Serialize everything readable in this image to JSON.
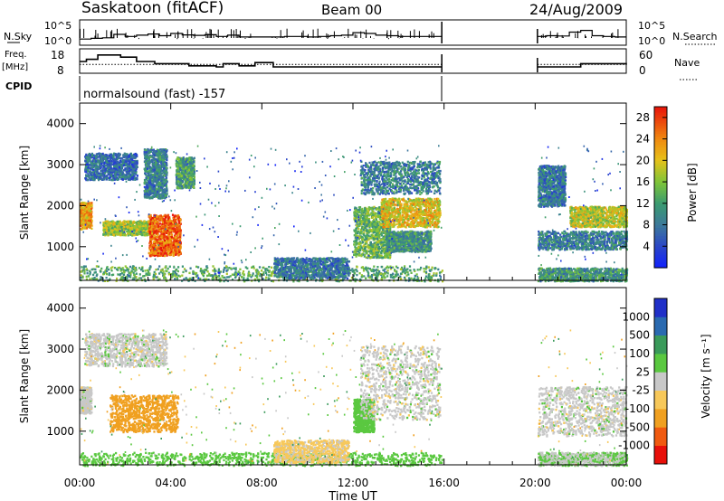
{
  "header": {
    "station": "Saskatoon (fitACF)",
    "beam": "Beam 00",
    "date": "24/Aug/2009"
  },
  "labels": {
    "nsky": "N.Sky",
    "nsearch": "N.Search",
    "freq": "Freq.",
    "mhz": "[MHz]",
    "nave": "Nave",
    "cpid": "CPID",
    "program": "normalsound (fast) -157",
    "slant_range": "Slant Range [km]",
    "power": "Power [dB]",
    "velocity": "Velocity [m s⁻¹]",
    "time_ut": "Time UT"
  },
  "chart_data": [
    {
      "type": "line",
      "panel": "noise",
      "series": [
        {
          "name": "N.Sky",
          "x": [
            0,
            0.5,
            1,
            1.5,
            2,
            2.5,
            3,
            3.5,
            4,
            4.5,
            5,
            5.5,
            6,
            6.5,
            7,
            7.5,
            8,
            8.5,
            9,
            9.5,
            10,
            10.5,
            11,
            11.5,
            12,
            12.5,
            13,
            13.5,
            14,
            14.5,
            15,
            15.5,
            15.9,
            20.1,
            20.5,
            21,
            21.5,
            22,
            22.5,
            23,
            23.5,
            24
          ],
          "values": [
            10,
            15,
            20,
            120,
            40,
            80,
            150,
            60,
            200,
            90,
            70,
            100,
            40,
            80,
            30,
            30,
            30,
            30,
            40,
            40,
            30,
            40,
            60,
            80,
            300,
            200,
            80,
            60,
            40,
            40,
            40,
            40,
            40,
            40,
            60,
            50,
            400,
            1000,
            60,
            40,
            30,
            30
          ]
        }
      ],
      "yticks": [
        "10^5",
        "10^0"
      ],
      "right_ticks": [
        "10^5",
        "10^0"
      ],
      "xlim": [
        "00:00",
        "24:00"
      ]
    },
    {
      "type": "line",
      "panel": "freq_nave",
      "series": [
        {
          "name": "Freq.",
          "x": [
            0,
            0.3,
            0.8,
            1.8,
            2.5,
            3.3,
            4.8,
            6,
            6.3,
            7,
            7.7,
            8.5,
            12,
            12.3,
            15.9,
            20.1,
            21.3,
            22,
            24
          ],
          "values": [
            13,
            14,
            16,
            15,
            13,
            12,
            11,
            10.5,
            12,
            11,
            12.5,
            10.5,
            10.5,
            10.5,
            10.5,
            10.5,
            10.5,
            12,
            11.5
          ]
        },
        {
          "name": "Nave",
          "x": [
            0,
            15.9,
            20.1,
            24
          ],
          "values": [
            22,
            22,
            22,
            22
          ]
        }
      ],
      "yticks": [
        18,
        8
      ],
      "right_ticks": [
        60,
        0
      ]
    },
    {
      "type": "heatmap",
      "panel": "power",
      "quantity": "Power [dB]",
      "xlim": [
        "00:00",
        "24:00"
      ],
      "ylim": [
        180,
        4500
      ],
      "yticks": [
        1000,
        2000,
        3000,
        4000
      ],
      "colorbar": {
        "labels": [
          "28",
          "24",
          "20",
          "16",
          "12",
          "8",
          "4"
        ],
        "range": [
          0,
          30
        ]
      },
      "regions": [
        {
          "t0": 0.0,
          "t1": 0.5,
          "r0": 1450,
          "r1": 2100,
          "value": 22
        },
        {
          "t0": 1.0,
          "t1": 3.2,
          "r0": 1300,
          "r1": 1650,
          "value": 17
        },
        {
          "t0": 3.0,
          "t1": 4.4,
          "r0": 800,
          "r1": 1800,
          "value": 26
        },
        {
          "t0": 0.2,
          "t1": 2.5,
          "r0": 2650,
          "r1": 3300,
          "value": 7
        },
        {
          "t0": 2.8,
          "t1": 3.8,
          "r0": 2200,
          "r1": 3400,
          "value": 9
        },
        {
          "t0": 4.2,
          "t1": 5.0,
          "r0": 2450,
          "r1": 3200,
          "value": 12
        },
        {
          "t0": 0.0,
          "t1": 15.9,
          "r0": 180,
          "r1": 550,
          "value": 13
        },
        {
          "t0": 8.5,
          "t1": 11.8,
          "r0": 250,
          "r1": 750,
          "value": 8
        },
        {
          "t0": 12.0,
          "t1": 13.6,
          "r0": 750,
          "r1": 2000,
          "value": 14
        },
        {
          "t0": 12.3,
          "t1": 15.8,
          "r0": 2300,
          "r1": 3100,
          "value": 9
        },
        {
          "t0": 13.2,
          "t1": 15.8,
          "r0": 1500,
          "r1": 2200,
          "value": 20
        },
        {
          "t0": 13.4,
          "t1": 15.4,
          "r0": 900,
          "r1": 1400,
          "value": 11
        },
        {
          "t0": 20.1,
          "t1": 24.0,
          "r0": 950,
          "r1": 1400,
          "value": 9
        },
        {
          "t0": 20.1,
          "t1": 21.3,
          "r0": 2000,
          "r1": 3000,
          "value": 8
        },
        {
          "t0": 21.5,
          "t1": 24.0,
          "r0": 1500,
          "r1": 2000,
          "value": 18
        },
        {
          "t0": 20.1,
          "t1": 24.0,
          "r0": 180,
          "r1": 500,
          "value": 11
        }
      ]
    },
    {
      "type": "heatmap",
      "panel": "velocity",
      "quantity": "Velocity [m s-1]",
      "xlim": [
        "00:00",
        "24:00"
      ],
      "ylim": [
        180,
        4500
      ],
      "yticks": [
        1000,
        2000,
        3000,
        4000
      ],
      "colorbar": {
        "labels": [
          "1000",
          "500",
          "100",
          "25",
          "-25",
          "-100",
          "-500",
          "-1000"
        ],
        "range": [
          -1000,
          1000
        ]
      },
      "regions": [
        {
          "t0": 0.0,
          "t1": 0.5,
          "r0": 1450,
          "r1": 2100,
          "value": 0
        },
        {
          "t0": 1.3,
          "t1": 4.3,
          "r0": 1000,
          "r1": 1900,
          "value": -300
        },
        {
          "t0": 0.2,
          "t1": 3.8,
          "r0": 2600,
          "r1": 3400,
          "value": 0
        },
        {
          "t0": 0.0,
          "t1": 15.9,
          "r0": 180,
          "r1": 500,
          "value": 60
        },
        {
          "t0": 8.5,
          "t1": 11.8,
          "r0": 250,
          "r1": 800,
          "value": -40
        },
        {
          "t0": 12.0,
          "t1": 12.9,
          "r0": 1000,
          "r1": 1800,
          "value": 70
        },
        {
          "t0": 12.3,
          "t1": 15.8,
          "r0": 1300,
          "r1": 3100,
          "value": 0
        },
        {
          "t0": 20.1,
          "t1": 24.0,
          "r0": 900,
          "r1": 2100,
          "value": 0
        },
        {
          "t0": 20.1,
          "t1": 24.0,
          "r0": 180,
          "r1": 500,
          "value": 20
        }
      ]
    }
  ],
  "xaxis": {
    "ticks": [
      "00:00",
      "04:00",
      "08:00",
      "12:00",
      "16:00",
      "20:00",
      "00:00"
    ]
  }
}
